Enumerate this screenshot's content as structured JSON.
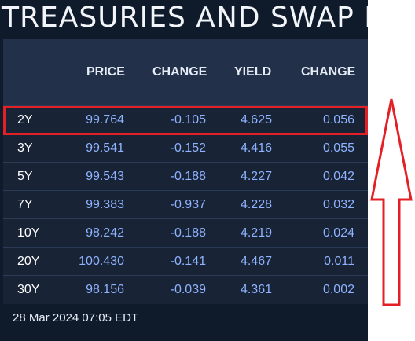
{
  "title": "TREASURIES AND SWAP RA",
  "headers": {
    "tenor": "",
    "price": "PRICE",
    "change1": "CHANGE",
    "yield": "YIELD",
    "change2": "CHANGE"
  },
  "rows": [
    {
      "tenor": "2Y",
      "price": "99.764",
      "change": "-0.105",
      "yield": "4.625",
      "change2": "0.056"
    },
    {
      "tenor": "3Y",
      "price": "99.541",
      "change": "-0.152",
      "yield": "4.416",
      "change2": "0.055"
    },
    {
      "tenor": "5Y",
      "price": "99.543",
      "change": "-0.188",
      "yield": "4.227",
      "change2": "0.042"
    },
    {
      "tenor": "7Y",
      "price": "99.383",
      "change": "-0.937",
      "yield": "4.228",
      "change2": "0.032"
    },
    {
      "tenor": "10Y",
      "price": "98.242",
      "change": "-0.188",
      "yield": "4.219",
      "change2": "0.024"
    },
    {
      "tenor": "20Y",
      "price": "100.430",
      "change": "-0.141",
      "yield": "4.467",
      "change2": "0.011"
    },
    {
      "tenor": "30Y",
      "price": "98.156",
      "change": "-0.039",
      "yield": "4.361",
      "change2": "0.002"
    }
  ],
  "footer": "28 Mar 2024 07:05 EDT",
  "colors": {
    "highlight": "#e32026",
    "value": "#8fb3ff",
    "background": "#0f1a2b"
  },
  "annotation_icon": "up-arrow-icon"
}
